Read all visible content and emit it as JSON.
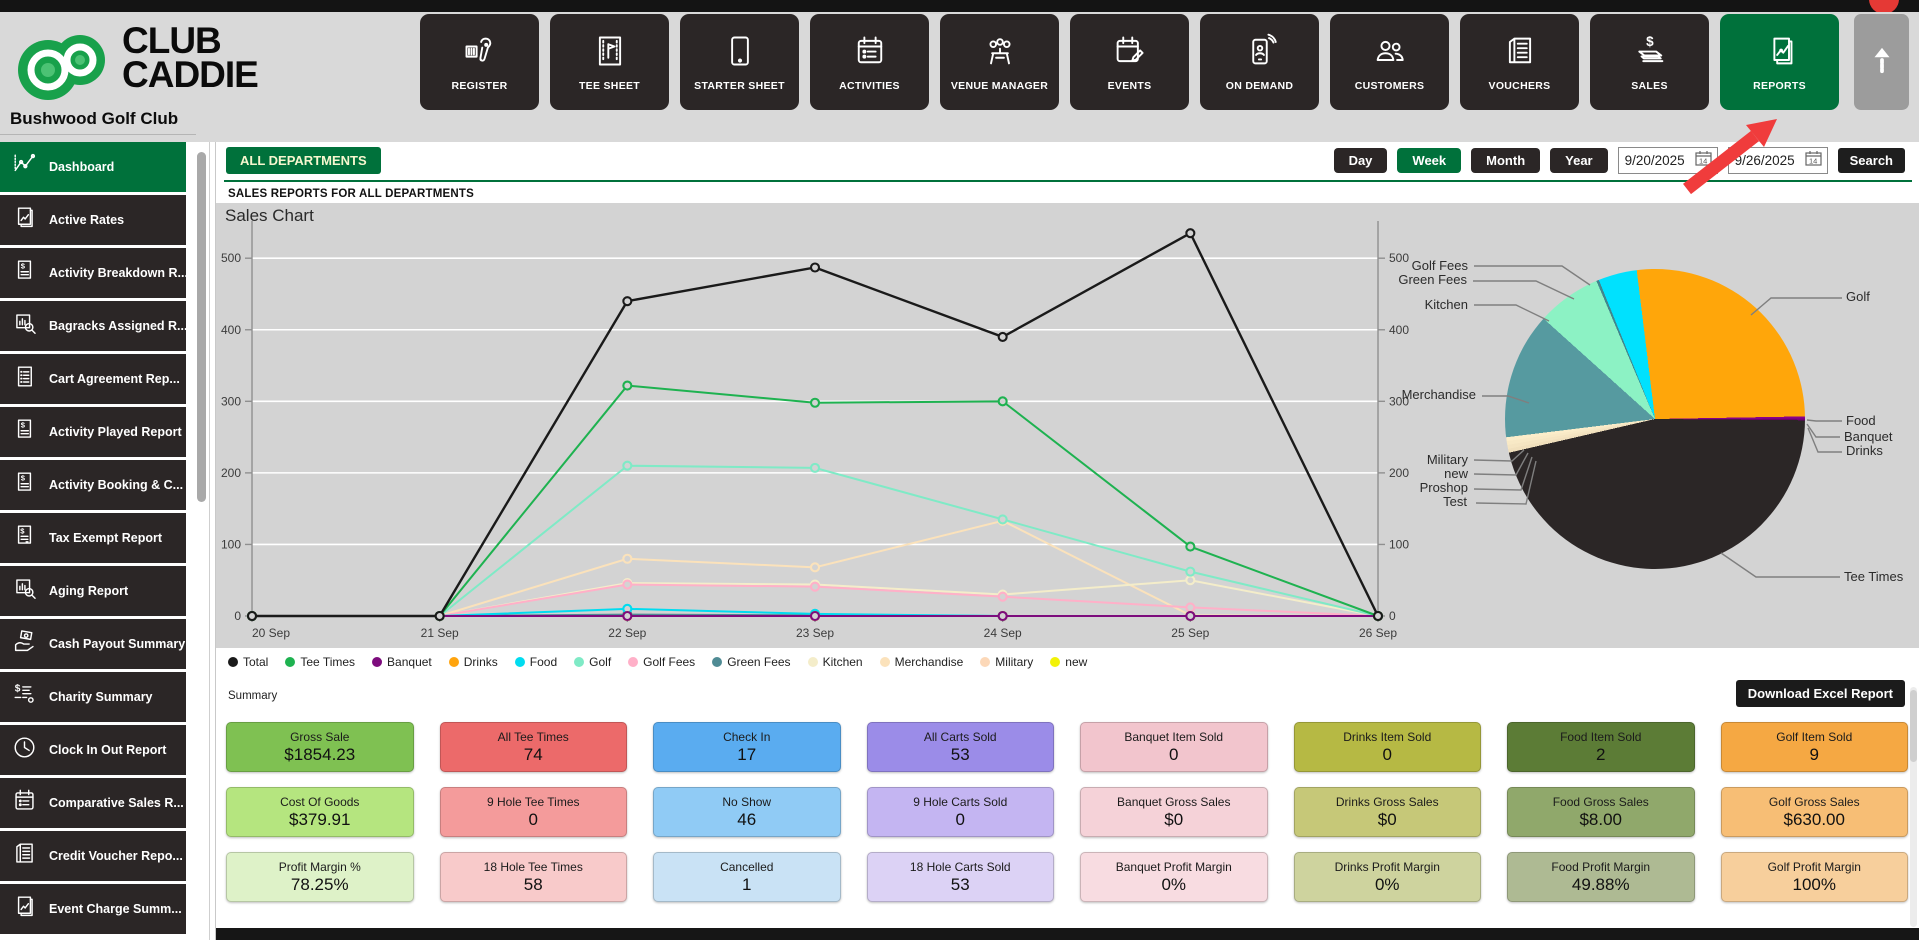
{
  "header": {
    "brand_line1": "CLUB",
    "brand_line2": "CADDIE",
    "club_name": "Bushwood Golf Club",
    "nav": [
      {
        "label": "REGISTER",
        "icon": "register"
      },
      {
        "label": "TEE SHEET",
        "icon": "teesheet"
      },
      {
        "label": "STARTER SHEET",
        "icon": "starter"
      },
      {
        "label": "ACTIVITIES",
        "icon": "activities"
      },
      {
        "label": "VENUE MANAGER",
        "icon": "venue"
      },
      {
        "label": "EVENTS",
        "icon": "events"
      },
      {
        "label": "ON DEMAND",
        "icon": "ondemand"
      },
      {
        "label": "CUSTOMERS",
        "icon": "customers"
      },
      {
        "label": "VOUCHERS",
        "icon": "vouchers"
      },
      {
        "label": "SALES",
        "icon": "sales"
      },
      {
        "label": "REPORTS",
        "icon": "reports",
        "active": true
      }
    ]
  },
  "sidebar": {
    "items": [
      {
        "label": "Dashboard",
        "icon": "dashboard",
        "active": true
      },
      {
        "label": "Active Rates",
        "icon": "docchart"
      },
      {
        "label": "Activity Breakdown R...",
        "icon": "docdollar"
      },
      {
        "label": "Bagracks Assigned R...",
        "icon": "chartmag"
      },
      {
        "label": "Cart Agreement Rep...",
        "icon": "doclist"
      },
      {
        "label": "Activity Played Report",
        "icon": "docdollar"
      },
      {
        "label": "Activity Booking & C...",
        "icon": "docdollar"
      },
      {
        "label": "Tax Exempt Report",
        "icon": "doccalc"
      },
      {
        "label": "Aging Report",
        "icon": "chartmag"
      },
      {
        "label": "Cash Payout Summary",
        "icon": "handmoney"
      },
      {
        "label": "Charity Summary",
        "icon": "dollarlist"
      },
      {
        "label": "Clock In Out Report",
        "icon": "clock"
      },
      {
        "label": "Comparative Sales R...",
        "icon": "activities"
      },
      {
        "label": "Credit Voucher Repo...",
        "icon": "vouchers"
      },
      {
        "label": "Event Charge Summ...",
        "icon": "docchart"
      }
    ]
  },
  "controls": {
    "department_filter": "ALL DEPARTMENTS",
    "range_buttons": [
      {
        "label": "Day"
      },
      {
        "label": "Week",
        "active": true
      },
      {
        "label": "Month"
      },
      {
        "label": "Year"
      }
    ],
    "date_from": "9/20/2025",
    "date_to": "9/26/2025",
    "search_label": "Search"
  },
  "section_title": "SALES REPORTS FOR ALL DEPARTMENTS",
  "chart_data": [
    {
      "type": "line",
      "title": "Sales Chart",
      "x": [
        "20 Sep",
        "21 Sep",
        "22 Sep",
        "23 Sep",
        "24 Sep",
        "25 Sep",
        "26 Sep"
      ],
      "ylim": [
        0,
        545
      ],
      "yticks": [
        0,
        100,
        200,
        300,
        400,
        500
      ],
      "grid": true,
      "legend_position": "bottom",
      "series": [
        {
          "name": "Total",
          "color": "#1a1a1a",
          "values": [
            0,
            0,
            440,
            487,
            390,
            535,
            0
          ]
        },
        {
          "name": "Tee Times",
          "color": "#1eb250",
          "values": [
            0,
            0,
            322,
            298,
            300,
            97,
            0
          ]
        },
        {
          "name": "Banquet",
          "color": "#7d0c7d",
          "values": [
            0,
            0,
            0,
            0,
            0,
            0,
            0
          ]
        },
        {
          "name": "Drinks",
          "color": "#ffa40d",
          "values": [
            0,
            0,
            0,
            0,
            0,
            0,
            0
          ]
        },
        {
          "name": "Food",
          "color": "#00dcf0",
          "values": [
            0,
            0,
            10,
            3,
            0,
            0,
            0
          ]
        },
        {
          "name": "Golf",
          "color": "#7feac6",
          "values": [
            0,
            0,
            210,
            207,
            135,
            62,
            0
          ]
        },
        {
          "name": "Golf Fees",
          "color": "#ffb0c8",
          "values": [
            0,
            0,
            44,
            41,
            27,
            12,
            0
          ]
        },
        {
          "name": "Green Fees",
          "color": "#4f8b94",
          "values": [
            0,
            0,
            2,
            1,
            0,
            0,
            0
          ]
        },
        {
          "name": "Kitchen",
          "color": "#f4edca",
          "values": [
            0,
            0,
            46,
            44,
            30,
            50,
            0
          ]
        },
        {
          "name": "Merchandise",
          "color": "#fbe2bb",
          "values": [
            0,
            0,
            80,
            68,
            133,
            1,
            0
          ]
        },
        {
          "name": "Military",
          "color": "#fcd8b8",
          "values": [
            0,
            0,
            0,
            0,
            0,
            0,
            0
          ]
        },
        {
          "name": "new",
          "color": "#f2f207",
          "values": [
            0,
            0,
            0,
            0,
            0,
            0,
            0
          ]
        }
      ]
    },
    {
      "type": "pie",
      "start_deg": -7,
      "slices": [
        {
          "label": "Golf",
          "color": "#ffa60a",
          "deg": 96
        },
        {
          "label": "Food",
          "color": "#8b008b",
          "deg": 0.6
        },
        {
          "label": "Banquet",
          "color": "#800080",
          "deg": 0.5
        },
        {
          "label": "Drinks",
          "color": "#6a006a",
          "deg": 0.4
        },
        {
          "label": "Tee Times",
          "color": "#2b2626",
          "deg": 166.5
        },
        {
          "label": "Test",
          "color": "#f1e0bd",
          "deg": 1.5
        },
        {
          "label": "Proshop",
          "color": "#f5e5c2",
          "deg": 1.5
        },
        {
          "label": "new",
          "color": "#f8e9c6",
          "deg": 1.5
        },
        {
          "label": "Military",
          "color": "#fbedca",
          "deg": 1.5
        },
        {
          "label": "Merchandise",
          "color": "#569aa0",
          "deg": 49
        },
        {
          "label": "Kitchen",
          "color": "#8cf2c4",
          "deg": 25
        },
        {
          "label": "Green Fees",
          "color": "#41868e",
          "deg": 1
        },
        {
          "label": "Golf Fees",
          "color": "#00e1fe",
          "deg": 15
        }
      ]
    }
  ],
  "summary": {
    "label": "Summary",
    "download_button": "Download Excel Report",
    "cards": [
      {
        "label": "Gross Sale",
        "value": "$1854.23",
        "color": "#7fc152"
      },
      {
        "label": "All Tee Times",
        "value": "74",
        "color": "#ec6a6a"
      },
      {
        "label": "Check In",
        "value": "17",
        "color": "#5aacf0"
      },
      {
        "label": "All Carts Sold",
        "value": "53",
        "color": "#9b8ce8"
      },
      {
        "label": "Banquet Item Sold",
        "value": "0",
        "color": "#f2c5cd"
      },
      {
        "label": "Drinks Item Sold",
        "value": "0",
        "color": "#b6b944"
      },
      {
        "label": "Food Item Sold",
        "value": "2",
        "color": "#5c7c36"
      },
      {
        "label": "Golf Item Sold",
        "value": "9",
        "color": "#f5a843"
      },
      {
        "label": "Cost Of Goods",
        "value": "$379.91",
        "color": "#b5e57f"
      },
      {
        "label": "9 Hole Tee Times",
        "value": "0",
        "color": "#f49b9b"
      },
      {
        "label": "No Show",
        "value": "46",
        "color": "#90cbf5"
      },
      {
        "label": "9 Hole Carts Sold",
        "value": "0",
        "color": "#c4b5f2"
      },
      {
        "label": "Banquet Gross Sales",
        "value": "$0",
        "color": "#f5d2d8"
      },
      {
        "label": "Drinks Gross Sales",
        "value": "$0",
        "color": "#c6c878"
      },
      {
        "label": "Food Gross Sales",
        "value": "$8.00",
        "color": "#90a86b"
      },
      {
        "label": "Golf Gross Sales",
        "value": "$630.00",
        "color": "#f7be75"
      },
      {
        "label": "Profit Margin %",
        "value": "78.25%",
        "color": "#def2c8"
      },
      {
        "label": "18 Hole Tee Times",
        "value": "58",
        "color": "#f8caca"
      },
      {
        "label": "Cancelled",
        "value": "1",
        "color": "#c9e2f5"
      },
      {
        "label": "18 Hole Carts Sold",
        "value": "53",
        "color": "#dcd2f5"
      },
      {
        "label": "Banquet Profit Margin",
        "value": "0%",
        "color": "#f8dce1"
      },
      {
        "label": "Drinks Profit Margin",
        "value": "0%",
        "color": "#ced39e"
      },
      {
        "label": "Food Profit Margin",
        "value": "49.88%",
        "color": "#aeba93"
      },
      {
        "label": "Golf Profit Margin",
        "value": "100%",
        "color": "#f7cf9c"
      }
    ]
  }
}
